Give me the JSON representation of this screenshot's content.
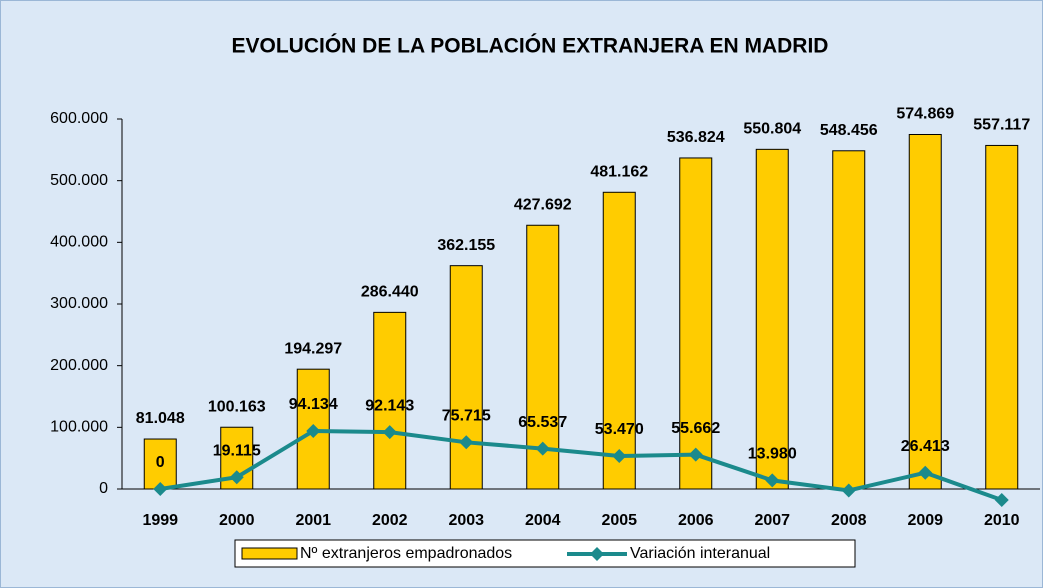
{
  "chart_data": {
    "type": "bar_line",
    "title": "EVOLUCIÓN DE LA POBLACIÓN EXTRANJERA EN MADRID",
    "categories": [
      "1999",
      "2000",
      "2001",
      "2002",
      "2003",
      "2004",
      "2005",
      "2006",
      "2007",
      "2008",
      "2009",
      "2010"
    ],
    "series": [
      {
        "name": "Nº extranjeros empadronados",
        "type": "bar",
        "color": "#ffcc00",
        "values": [
          81048,
          100163,
          194297,
          286440,
          362155,
          427692,
          481162,
          536824,
          550804,
          548456,
          574869,
          557117
        ],
        "value_labels": [
          "81.048",
          "100.163",
          "194.297",
          "286.440",
          "362.155",
          "427.692",
          "481.162",
          "536.824",
          "550.804",
          "548.456",
          "574.869",
          "557.117"
        ]
      },
      {
        "name": "Variación interanual",
        "type": "line",
        "color": "#1b8a8c",
        "values": [
          0,
          19115,
          94134,
          92143,
          75715,
          65537,
          53470,
          55662,
          13980,
          -2348,
          26413,
          -17752
        ],
        "value_labels": [
          "0",
          "19.115",
          "94.134",
          "92.143",
          "75.715",
          "65.537",
          "53.470",
          "55.662",
          "13.980",
          null,
          "26.413",
          null
        ]
      }
    ],
    "ylim": [
      0,
      600000
    ],
    "yticks": [
      0,
      {
        "value": 100000,
        "label": "100.000"
      },
      {
        "value": 200000,
        "label": "200.000"
      },
      {
        "value": 300000,
        "label": "300.000"
      },
      {
        "value": 400000,
        "label": "400.000"
      },
      {
        "value": 500000,
        "label": "500.000"
      },
      {
        "value": 600000,
        "label": "600.000"
      }
    ],
    "legend": "bottom"
  }
}
